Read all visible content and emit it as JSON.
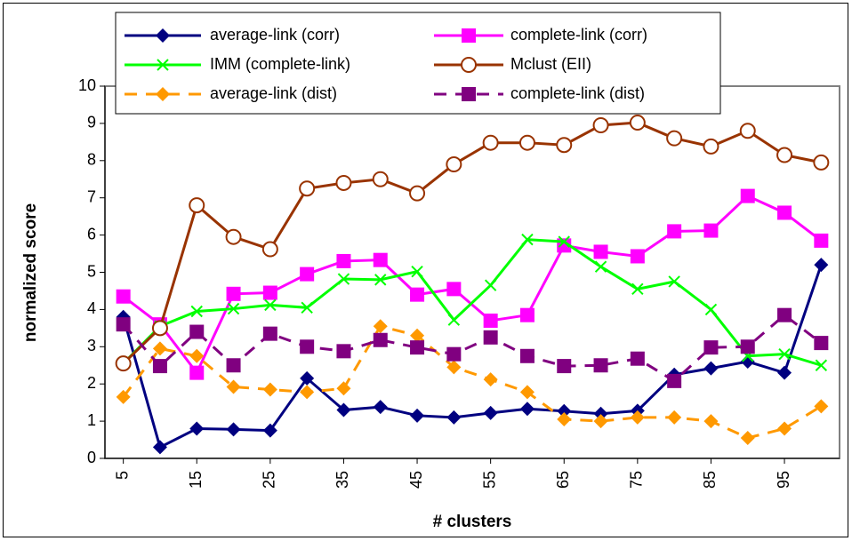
{
  "chart_data": {
    "type": "line",
    "x_label": "# clusters",
    "y_label": "normalized score",
    "x": [
      5,
      10,
      15,
      20,
      25,
      30,
      35,
      40,
      45,
      50,
      55,
      60,
      65,
      70,
      75,
      80,
      85,
      90,
      95,
      100
    ],
    "xlim": [
      2.5,
      102.5
    ],
    "xticks": [
      5,
      15,
      25,
      35,
      45,
      55,
      65,
      75,
      85,
      95
    ],
    "ylim": [
      0,
      10
    ],
    "yticks": [
      0,
      1,
      2,
      3,
      4,
      5,
      6,
      7,
      8,
      9,
      10
    ],
    "series": [
      {
        "name": "average-link (corr)",
        "color": "#000080",
        "marker": "diamond",
        "dash": false,
        "values": [
          3.8,
          0.3,
          0.8,
          0.78,
          0.75,
          2.15,
          1.3,
          1.38,
          1.15,
          1.1,
          1.22,
          1.33,
          1.27,
          1.2,
          1.28,
          2.25,
          2.42,
          2.6,
          2.3,
          5.2
        ]
      },
      {
        "name": "complete-link (corr)",
        "color": "#ff00ff",
        "marker": "square",
        "dash": false,
        "values": [
          4.35,
          3.6,
          2.3,
          4.42,
          4.45,
          4.95,
          5.3,
          5.33,
          4.4,
          4.55,
          3.7,
          3.85,
          5.72,
          5.55,
          5.43,
          6.1,
          6.12,
          7.05,
          6.6,
          5.85
        ]
      },
      {
        "name": "IMM (complete-link)",
        "color": "#00ff00",
        "marker": "cross",
        "dash": false,
        "values": [
          2.55,
          3.55,
          3.95,
          4.02,
          4.12,
          4.05,
          4.82,
          4.8,
          5.02,
          3.72,
          4.65,
          5.88,
          5.82,
          5.15,
          4.55,
          4.75,
          4.0,
          2.75,
          2.8,
          2.5
        ]
      },
      {
        "name": "Mclust (EII)",
        "color": "#993300",
        "marker": "circle",
        "dash": false,
        "values": [
          2.55,
          3.5,
          6.8,
          5.95,
          5.62,
          7.25,
          7.4,
          7.5,
          7.12,
          7.9,
          8.48,
          8.48,
          8.42,
          8.95,
          9.02,
          8.6,
          8.38,
          8.8,
          8.15,
          7.95
        ]
      },
      {
        "name": "average-link (dist)",
        "color": "#ff9900",
        "marker": "diamond",
        "dash": true,
        "values": [
          1.65,
          2.95,
          2.75,
          1.92,
          1.85,
          1.78,
          1.88,
          3.55,
          3.3,
          2.45,
          2.12,
          1.78,
          1.05,
          1.0,
          1.1,
          1.1,
          1.0,
          0.55,
          0.8,
          1.4
        ]
      },
      {
        "name": "complete-link (dist)",
        "color": "#800080",
        "marker": "square",
        "dash": true,
        "values": [
          3.6,
          2.48,
          3.4,
          2.5,
          3.35,
          3.0,
          2.88,
          3.18,
          2.98,
          2.8,
          3.25,
          2.75,
          2.48,
          2.5,
          2.68,
          2.08,
          2.98,
          3.0,
          3.85,
          3.1
        ]
      }
    ]
  }
}
